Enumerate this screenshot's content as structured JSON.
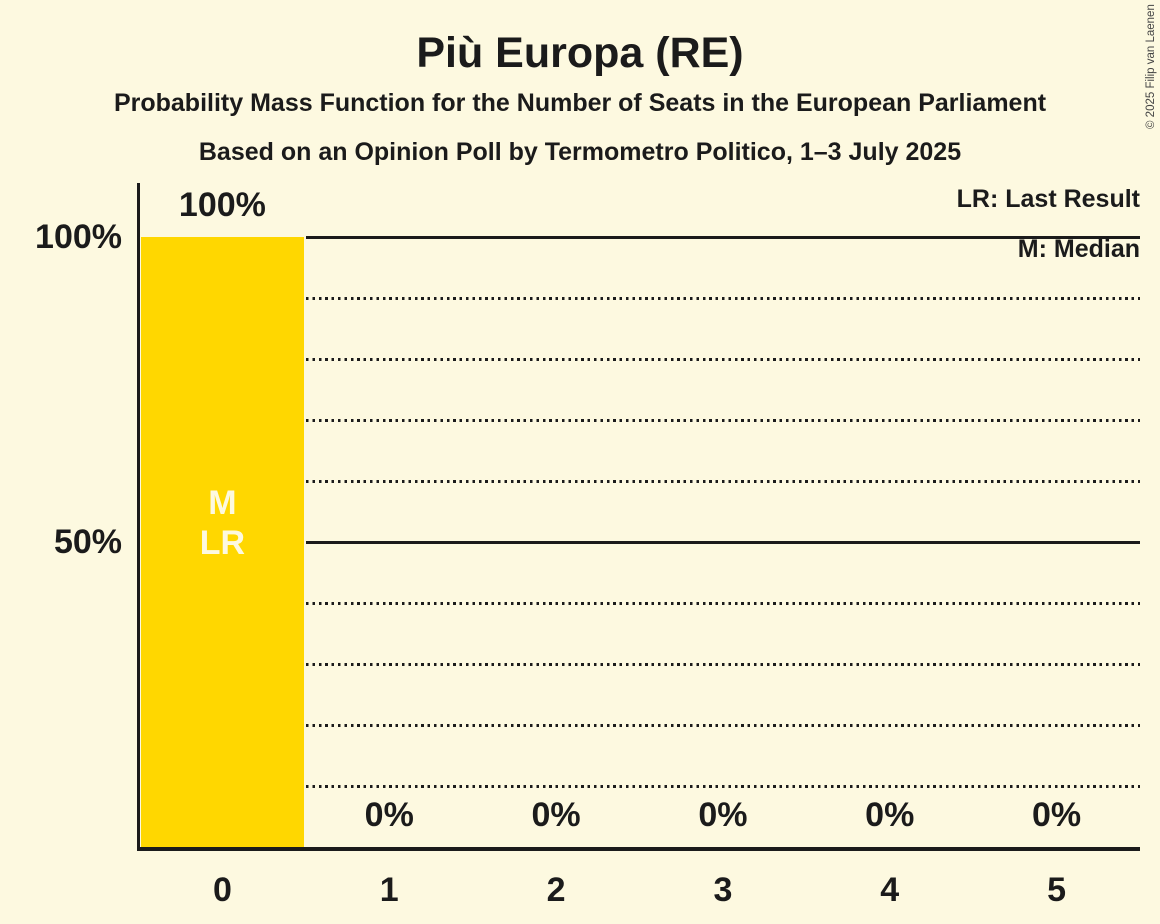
{
  "header": {
    "title": "Più Europa (RE)",
    "subtitle": "Probability Mass Function for the Number of Seats in the European Parliament",
    "source_line": "Based on an Opinion Poll by Termometro Politico, 1–3 July 2025"
  },
  "copyright": "© 2025 Filip van Laenen",
  "legend": {
    "last_result": "LR: Last Result",
    "median": "M: Median",
    "position": "top-right"
  },
  "colors": {
    "background": "#FDF9E0",
    "bar": "#FFD700",
    "text": "#1B1B1B",
    "bar_annotation_text": "#FDF9E0",
    "copyright_text": "#444444"
  },
  "chart_data": {
    "type": "bar",
    "title": "Più Europa (RE)",
    "categories": [
      "0",
      "1",
      "2",
      "3",
      "4",
      "5"
    ],
    "values": [
      100,
      0,
      0,
      0,
      0,
      0
    ],
    "value_labels": [
      "100%",
      "0%",
      "0%",
      "0%",
      "0%",
      "0%"
    ],
    "xlabel": "",
    "ylabel": "",
    "ylim": [
      0,
      100
    ],
    "yticks": [
      {
        "pct": 100,
        "label": "100%"
      },
      {
        "pct": 50,
        "label": "50%"
      }
    ],
    "gridlines": {
      "solid_pcts": [
        100,
        50
      ],
      "dotted_pcts": [
        90,
        80,
        70,
        60,
        40,
        30,
        20,
        10
      ]
    },
    "annotations": [
      {
        "bar_index": 0,
        "lines": [
          "M",
          "LR"
        ]
      }
    ],
    "grid": "horizontal, dotted every 10%, solid at 50% and 100%",
    "legend_position": "top-right"
  }
}
